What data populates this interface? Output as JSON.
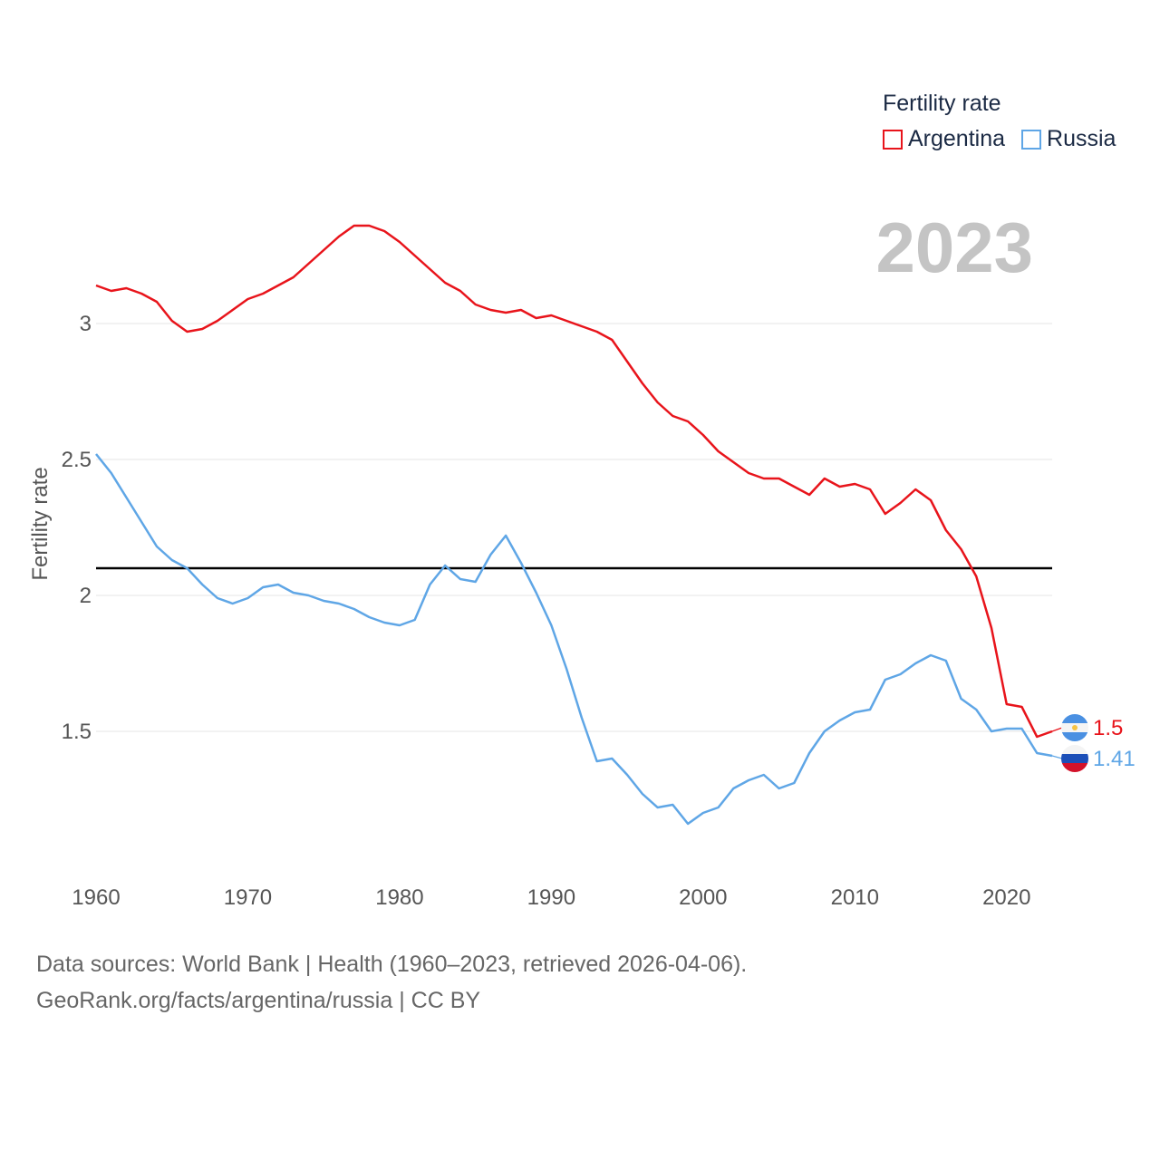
{
  "chart_data": {
    "type": "line",
    "title": "Fertility rate",
    "ylabel": "Fertility rate",
    "xlabel": "",
    "xlim": [
      1960,
      2023
    ],
    "ylim": [
      1.0,
      3.5
    ],
    "x_ticks": [
      "1960",
      "1970",
      "1980",
      "1990",
      "2000",
      "2010",
      "2020"
    ],
    "y_ticks": [
      "1.5",
      "2",
      "2.5",
      "3"
    ],
    "reference_line": {
      "value": 2.1,
      "color": "#000000"
    },
    "current_year": "2023",
    "x": [
      1960,
      1961,
      1962,
      1963,
      1964,
      1965,
      1966,
      1967,
      1968,
      1969,
      1970,
      1971,
      1972,
      1973,
      1974,
      1975,
      1976,
      1977,
      1978,
      1979,
      1980,
      1981,
      1982,
      1983,
      1984,
      1985,
      1986,
      1987,
      1988,
      1989,
      1990,
      1991,
      1992,
      1993,
      1994,
      1995,
      1996,
      1997,
      1998,
      1999,
      2000,
      2001,
      2002,
      2003,
      2004,
      2005,
      2006,
      2007,
      2008,
      2009,
      2010,
      2011,
      2012,
      2013,
      2014,
      2015,
      2016,
      2017,
      2018,
      2019,
      2020,
      2021,
      2022,
      2023
    ],
    "series": [
      {
        "name": "Argentina",
        "color": "#e8141b",
        "end_label": "1.5",
        "values": [
          3.14,
          3.12,
          3.13,
          3.11,
          3.08,
          3.01,
          2.97,
          2.98,
          3.01,
          3.05,
          3.09,
          3.11,
          3.14,
          3.17,
          3.22,
          3.27,
          3.32,
          3.36,
          3.36,
          3.34,
          3.3,
          3.25,
          3.2,
          3.15,
          3.12,
          3.07,
          3.05,
          3.04,
          3.05,
          3.02,
          3.03,
          3.01,
          2.99,
          2.97,
          2.94,
          2.86,
          2.78,
          2.71,
          2.66,
          2.64,
          2.59,
          2.53,
          2.49,
          2.45,
          2.43,
          2.43,
          2.4,
          2.37,
          2.43,
          2.4,
          2.41,
          2.39,
          2.3,
          2.34,
          2.39,
          2.35,
          2.24,
          2.17,
          2.07,
          1.88,
          1.6,
          1.59,
          1.48,
          1.5
        ]
      },
      {
        "name": "Russia",
        "color": "#5fa6e6",
        "end_label": "1.41",
        "values": [
          2.52,
          2.45,
          2.36,
          2.27,
          2.18,
          2.13,
          2.1,
          2.04,
          1.99,
          1.97,
          1.99,
          2.03,
          2.04,
          2.01,
          2.0,
          1.98,
          1.97,
          1.95,
          1.92,
          1.9,
          1.89,
          1.91,
          2.04,
          2.11,
          2.06,
          2.05,
          2.15,
          2.22,
          2.12,
          2.01,
          1.89,
          1.73,
          1.55,
          1.39,
          1.4,
          1.34,
          1.27,
          1.22,
          1.23,
          1.16,
          1.2,
          1.22,
          1.29,
          1.32,
          1.34,
          1.29,
          1.31,
          1.42,
          1.5,
          1.54,
          1.57,
          1.58,
          1.69,
          1.71,
          1.75,
          1.78,
          1.76,
          1.62,
          1.58,
          1.5,
          1.51,
          1.51,
          1.42,
          1.41
        ]
      }
    ]
  },
  "source": {
    "line1": "Data sources: World Bank | Health (1960–2023, retrieved 2026-04-06).",
    "line2": "GeoRank.org/facts/argentina/russia | CC BY"
  }
}
